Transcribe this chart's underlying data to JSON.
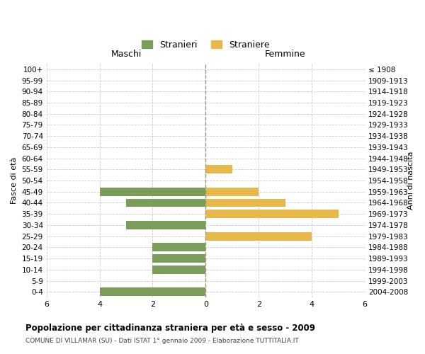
{
  "age_groups": [
    "100+",
    "95-99",
    "90-94",
    "85-89",
    "80-84",
    "75-79",
    "70-74",
    "65-69",
    "60-64",
    "55-59",
    "50-54",
    "45-49",
    "40-44",
    "35-39",
    "30-34",
    "25-29",
    "20-24",
    "15-19",
    "10-14",
    "5-9",
    "0-4"
  ],
  "birth_years": [
    "≤ 1908",
    "1909-1913",
    "1914-1918",
    "1919-1923",
    "1924-1928",
    "1929-1933",
    "1934-1938",
    "1939-1943",
    "1944-1948",
    "1949-1953",
    "1954-1958",
    "1959-1963",
    "1964-1968",
    "1969-1973",
    "1974-1978",
    "1979-1983",
    "1984-1988",
    "1989-1993",
    "1994-1998",
    "1999-2003",
    "2004-2008"
  ],
  "maschi": [
    0,
    0,
    0,
    0,
    0,
    0,
    0,
    0,
    0,
    0,
    0,
    4,
    3,
    0,
    3,
    0,
    2,
    2,
    2,
    0,
    4
  ],
  "femmine": [
    0,
    0,
    0,
    0,
    0,
    0,
    0,
    0,
    0,
    1,
    0,
    2,
    3,
    5,
    0,
    4,
    0,
    0,
    0,
    0,
    0
  ],
  "color_maschi": "#7a9e5a",
  "color_femmine": "#e8b84b",
  "xlim": 6,
  "title": "Popolazione per cittadinanza straniera per età e sesso - 2009",
  "subtitle": "COMUNE DI VILLAMAR (SU) - Dati ISTAT 1° gennaio 2009 - Elaborazione TUTTITALIA.IT",
  "ylabel_left": "Fasce di età",
  "ylabel_right": "Anni di nascita",
  "label_maschi": "Stranieri",
  "label_femmine": "Straniere",
  "header_left": "Maschi",
  "header_right": "Femmine",
  "background_color": "#ffffff",
  "grid_color": "#cccccc",
  "bar_height": 0.75
}
